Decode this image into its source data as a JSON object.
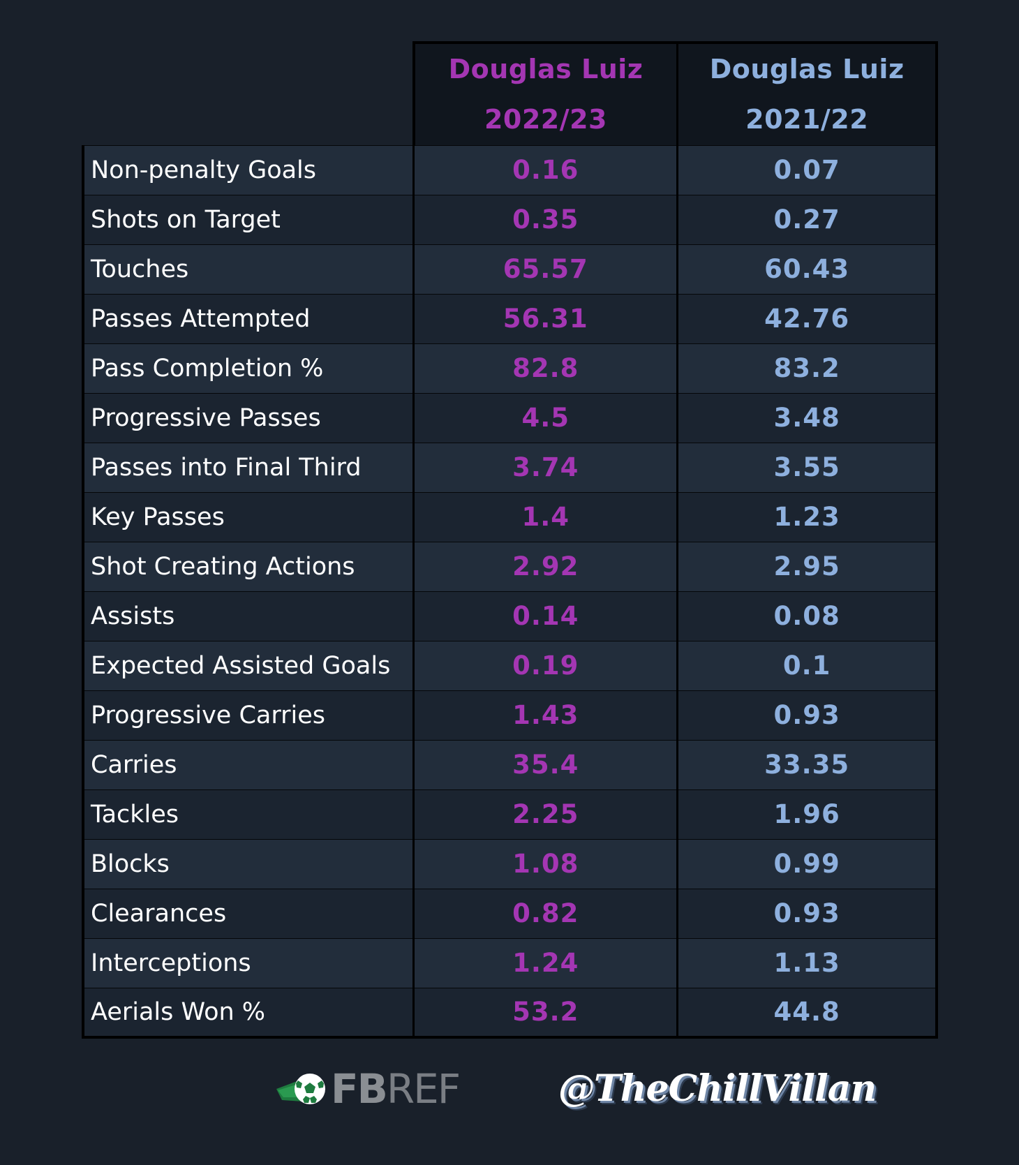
{
  "header": {
    "col_a": {
      "name": "Douglas Luiz",
      "season": "2022/23"
    },
    "col_b": {
      "name": "Douglas Luiz",
      "season": "2021/22"
    }
  },
  "colors": {
    "col_a": "#a436b3",
    "col_b": "#8eb0de",
    "background": "#19202a"
  },
  "rows": [
    {
      "label": "Non-penalty Goals",
      "a": "0.16",
      "b": "0.07"
    },
    {
      "label": "Shots on Target",
      "a": "0.35",
      "b": "0.27"
    },
    {
      "label": "Touches",
      "a": "65.57",
      "b": "60.43"
    },
    {
      "label": "Passes Attempted",
      "a": "56.31",
      "b": "42.76"
    },
    {
      "label": "Pass Completion %",
      "a": "82.8",
      "b": "83.2"
    },
    {
      "label": "Progressive Passes",
      "a": "4.5",
      "b": "3.48"
    },
    {
      "label": "Passes into Final Third",
      "a": "3.74",
      "b": "3.55"
    },
    {
      "label": "Key Passes",
      "a": "1.4",
      "b": "1.23"
    },
    {
      "label": "Shot Creating Actions",
      "a": "2.92",
      "b": "2.95"
    },
    {
      "label": "Assists",
      "a": "0.14",
      "b": "0.08"
    },
    {
      "label": "Expected Assisted Goals",
      "a": "0.19",
      "b": "0.1"
    },
    {
      "label": "Progressive Carries",
      "a": "1.43",
      "b": "0.93"
    },
    {
      "label": "Carries",
      "a": "35.4",
      "b": "33.35"
    },
    {
      "label": "Tackles",
      "a": "2.25",
      "b": "1.96"
    },
    {
      "label": "Blocks",
      "a": "1.08",
      "b": "0.99"
    },
    {
      "label": "Clearances",
      "a": "0.82",
      "b": "0.93"
    },
    {
      "label": "Interceptions",
      "a": "1.24",
      "b": "1.13"
    },
    {
      "label": "Aerials Won %",
      "a": "53.2",
      "b": "44.8"
    }
  ],
  "footer": {
    "source_logo": {
      "text_bold": "FB",
      "text_light": "REF",
      "icon": "soccer-ball-icon"
    },
    "handle": "@TheChillVillan"
  }
}
